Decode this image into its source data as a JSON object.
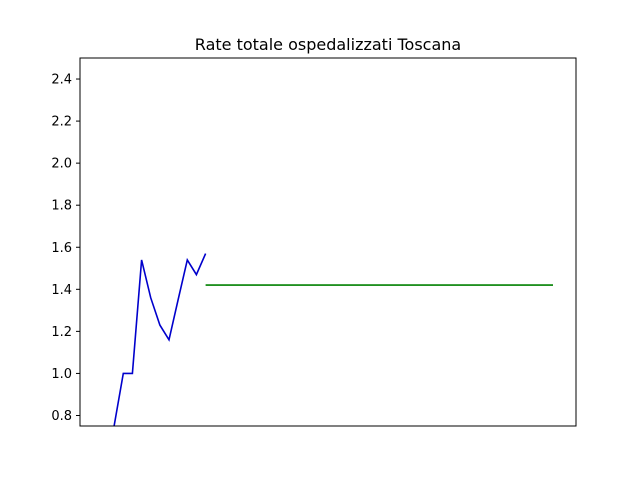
{
  "chart_data": {
    "type": "line",
    "title": "Rate totale ospedalizzati Toscana",
    "xlabel": "",
    "ylabel": "",
    "ylim": [
      0.75,
      2.5
    ],
    "xlim": [
      0,
      49
    ],
    "x_ticks_visible": false,
    "yticks": [
      0.8,
      1.0,
      1.2,
      1.4,
      1.6,
      1.8,
      2.0,
      2.2,
      2.4
    ],
    "ytick_labels": [
      "0.8",
      "1.0",
      "1.2",
      "1.4",
      "1.6",
      "1.8",
      "2.0",
      "2.2",
      "2.4"
    ],
    "grid": false,
    "series": [
      {
        "color": "#0000cc",
        "x": [
          1,
          2,
          3,
          4,
          5,
          6,
          7,
          8,
          9,
          10,
          11
        ],
        "y": [
          0.75,
          1.0,
          1.0,
          1.54,
          1.36,
          1.23,
          1.16,
          1.35,
          1.54,
          1.47,
          1.57
        ]
      },
      {
        "color": "#008000",
        "x": [
          11,
          49
        ],
        "y": [
          1.42,
          1.42
        ]
      }
    ]
  }
}
